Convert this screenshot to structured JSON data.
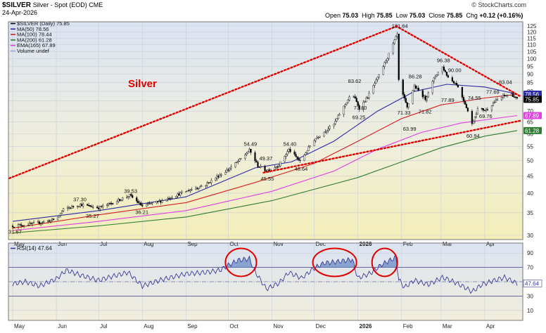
{
  "header": {
    "symbol_title": "$SILVER",
    "symbol_subtitle": "Silver - Spot (EOD)  CME",
    "date": "24-Apr-2026",
    "watermark": "© StockCharts.com",
    "ohlc": {
      "open_label": "Open",
      "open": "75.03",
      "high_label": "High",
      "high": "75.85",
      "low_label": "Low",
      "low": "75.03",
      "close_label": "Close",
      "close": "75.85",
      "chg_label": "Chg",
      "chg": "+0.12 (+0.16%)"
    }
  },
  "legend": [
    {
      "text": "$SILVER (Daily) 75.85",
      "color": "#000000"
    },
    {
      "text": "MA(50) 78.56",
      "color": "#2a2aa8"
    },
    {
      "text": "MA(100) 78.44",
      "color": "#d42020"
    },
    {
      "text": "MA(200) 61.28",
      "color": "#2e7d32"
    },
    {
      "text": "EMA(165) 67.89",
      "color": "#e040e0"
    },
    {
      "text": "Volume undef",
      "color": "#9aa8d8"
    }
  ],
  "chart_data": [
    {
      "type": "candlestick",
      "title": "Silver",
      "title_color": "#e00000",
      "y_scale": "log",
      "ylim": [
        30,
        125
      ],
      "y_ticks": [
        30,
        35,
        40,
        45,
        50,
        55,
        60,
        65,
        70,
        75,
        80,
        85,
        90,
        95,
        100,
        105,
        110,
        115,
        120,
        125
      ],
      "x_tick_labels": [
        "May",
        "Jun",
        "Jul",
        "Aug",
        "Sep",
        "Oct",
        "Nov",
        "Dec",
        "2026",
        "Feb",
        "Mar",
        "Apr"
      ],
      "close_series": [
        [
          "2025-05-01",
          32.0
        ],
        [
          "2025-05-15",
          32.4
        ],
        [
          "2025-06-01",
          33.5
        ],
        [
          "2025-06-06",
          35.8
        ],
        [
          "2025-06-18",
          37.0
        ],
        [
          "2025-07-01",
          36.2
        ],
        [
          "2025-07-12",
          37.6
        ],
        [
          "2025-07-23",
          39.4
        ],
        [
          "2025-08-01",
          36.6
        ],
        [
          "2025-08-15",
          38.0
        ],
        [
          "2025-09-01",
          40.5
        ],
        [
          "2025-09-15",
          42.4
        ],
        [
          "2025-10-01",
          47.0
        ],
        [
          "2025-10-10",
          50.5
        ],
        [
          "2025-10-16",
          53.6
        ],
        [
          "2025-10-22",
          48.2
        ],
        [
          "2025-10-28",
          46.6
        ],
        [
          "2025-11-06",
          48.4
        ],
        [
          "2025-11-13",
          53.8
        ],
        [
          "2025-11-21",
          49.6
        ],
        [
          "2025-12-01",
          57.6
        ],
        [
          "2025-12-15",
          64.0
        ],
        [
          "2025-12-28",
          79.0
        ],
        [
          "2026-01-02",
          71.4
        ],
        [
          "2026-01-08",
          77.0
        ],
        [
          "2026-01-16",
          89.0
        ],
        [
          "2026-01-23",
          103.0
        ],
        [
          "2026-01-29",
          118.0
        ],
        [
          "2026-01-30",
          86.0
        ],
        [
          "2026-02-02",
          78.0
        ],
        [
          "2026-02-05",
          71.5
        ],
        [
          "2026-02-10",
          83.0
        ],
        [
          "2026-02-18",
          76.0
        ],
        [
          "2026-02-25",
          89.0
        ],
        [
          "2026-03-02",
          94.5
        ],
        [
          "2026-03-06",
          88.0
        ],
        [
          "2026-03-12",
          84.0
        ],
        [
          "2026-03-19",
          72.0
        ],
        [
          "2026-03-23",
          64.0
        ],
        [
          "2026-03-27",
          71.0
        ],
        [
          "2026-04-02",
          70.5
        ],
        [
          "2026-04-08",
          74.5
        ],
        [
          "2026-04-14",
          77.5
        ],
        [
          "2026-04-20",
          78.5
        ],
        [
          "2026-04-24",
          75.85
        ]
      ],
      "annotations": [
        {
          "date": "2025-05-02",
          "label": "31.67",
          "value": 31.67
        },
        {
          "date": "2025-06-17",
          "label": "37.30",
          "value": 37.3
        },
        {
          "date": "2025-06-26",
          "label": "35.27",
          "value": 35.27
        },
        {
          "date": "2025-07-23",
          "label": "39.53",
          "value": 39.53
        },
        {
          "date": "2025-07-31",
          "label": "36.21",
          "value": 36.21
        },
        {
          "date": "2025-10-16",
          "label": "54.49",
          "value": 54.49
        },
        {
          "date": "2025-10-27",
          "label": "49.37",
          "value": 49.37
        },
        {
          "date": "2025-10-28",
          "label": "45.55",
          "value": 45.55
        },
        {
          "date": "2025-11-13",
          "label": "54.40",
          "value": 54.4
        },
        {
          "date": "2025-11-21",
          "label": "48.64",
          "value": 48.64
        },
        {
          "date": "2025-12-29",
          "label": "83.62",
          "value": 83.62
        },
        {
          "date": "2026-01-02",
          "label": "73.80",
          "value": 73.8
        },
        {
          "date": "2026-01-01",
          "label": "69.25",
          "value": 69.25
        },
        {
          "date": "2026-01-29",
          "label": "121.64",
          "value": 121.64
        },
        {
          "date": "2026-02-02",
          "label": "71.33",
          "value": 71.33
        },
        {
          "date": "2026-02-06",
          "label": "63.99",
          "value": 63.99
        },
        {
          "date": "2026-02-10",
          "label": "86.28",
          "value": 86.28
        },
        {
          "date": "2026-02-17",
          "label": "71.82",
          "value": 71.82
        },
        {
          "date": "2026-03-02",
          "label": "96.38",
          "value": 96.38
        },
        {
          "date": "2026-03-10",
          "label": "90.00",
          "value": 90.0
        },
        {
          "date": "2026-03-05",
          "label": "77.89",
          "value": 77.89
        },
        {
          "date": "2026-03-24",
          "label": "74.55",
          "value": 74.55
        },
        {
          "date": "2026-03-23",
          "label": "60.94",
          "value": 60.94
        },
        {
          "date": "2026-04-06",
          "label": "77.69",
          "value": 77.69
        },
        {
          "date": "2026-04-01",
          "label": "69.76",
          "value": 69.76
        },
        {
          "date": "2026-04-15",
          "label": "83.04",
          "value": 83.04
        }
      ],
      "moving_averages": [
        {
          "name": "MA(50)",
          "color": "#2a2aa8",
          "points": [
            [
              "2025-05-01",
              33.0
            ],
            [
              "2025-07-01",
              35.5
            ],
            [
              "2025-09-01",
              39.0
            ],
            [
              "2025-10-20",
              47.5
            ],
            [
              "2025-11-15",
              49.5
            ],
            [
              "2025-12-15",
              57.0
            ],
            [
              "2026-01-15",
              70.0
            ],
            [
              "2026-02-10",
              80.0
            ],
            [
              "2026-03-05",
              84.0
            ],
            [
              "2026-04-01",
              82.5
            ],
            [
              "2026-04-24",
              78.56
            ]
          ]
        },
        {
          "name": "MA(100)",
          "color": "#d42020",
          "points": [
            [
              "2025-05-01",
              31.5
            ],
            [
              "2025-07-01",
              34.5
            ],
            [
              "2025-09-01",
              37.5
            ],
            [
              "2025-10-20",
              43.0
            ],
            [
              "2025-12-01",
              49.0
            ],
            [
              "2026-01-01",
              57.0
            ],
            [
              "2026-02-01",
              66.5
            ],
            [
              "2026-03-01",
              73.0
            ],
            [
              "2026-04-01",
              76.5
            ],
            [
              "2026-04-24",
              78.44
            ]
          ]
        },
        {
          "name": "MA(200)",
          "color": "#2e7d32",
          "points": [
            [
              "2025-05-01",
              30.5
            ],
            [
              "2025-07-01",
              32.0
            ],
            [
              "2025-09-01",
              34.0
            ],
            [
              "2025-11-01",
              38.0
            ],
            [
              "2026-01-01",
              44.5
            ],
            [
              "2026-02-01",
              49.5
            ],
            [
              "2026-03-01",
              54.5
            ],
            [
              "2026-04-01",
              59.0
            ],
            [
              "2026-04-24",
              61.28
            ]
          ]
        },
        {
          "name": "EMA(165)",
          "color": "#e040e0",
          "points": [
            [
              "2025-05-01",
              31.0
            ],
            [
              "2025-07-01",
              33.0
            ],
            [
              "2025-09-01",
              35.5
            ],
            [
              "2025-11-01",
              40.5
            ],
            [
              "2025-12-15",
              46.5
            ],
            [
              "2026-01-15",
              54.0
            ],
            [
              "2026-02-15",
              60.5
            ],
            [
              "2026-03-15",
              64.5
            ],
            [
              "2026-04-24",
              67.89
            ]
          ]
        }
      ],
      "trendlines": [
        {
          "color": "#e00000",
          "style": "dotted",
          "from": [
            "2025-04-24",
            43.5
          ],
          "to": [
            "2026-01-29",
            125.0
          ]
        },
        {
          "color": "#e00000",
          "style": "dotted",
          "from": [
            "2026-01-28",
            125.0
          ],
          "to": [
            "2026-04-26",
            77.5
          ]
        },
        {
          "color": "#e00000",
          "style": "dotted",
          "from": [
            "2025-10-26",
            46.0
          ],
          "to": [
            "2026-04-26",
            65.5
          ]
        }
      ],
      "last_value_tags": [
        {
          "label": "78.56",
          "value": 78.56,
          "color": "#2a2aa8"
        },
        {
          "label": "75.85",
          "value": 75.85,
          "color": "#000000"
        },
        {
          "label": "67.89",
          "value": 67.89,
          "color": "#e040e0"
        },
        {
          "label": "61.28",
          "value": 61.28,
          "color": "#2e7d32"
        }
      ]
    },
    {
      "type": "line",
      "title": "RSI(14) 47.64",
      "ylim": [
        0,
        100
      ],
      "y_ticks": [
        10,
        30,
        50,
        70,
        90
      ],
      "overbought": 70,
      "oversold": 30,
      "x_tick_labels": [
        "May",
        "Jun",
        "Jul",
        "Aug",
        "Sep",
        "Oct",
        "Nov",
        "Dec",
        "2026",
        "Feb",
        "Mar",
        "Apr"
      ],
      "series": [
        [
          "2025-05-01",
          47
        ],
        [
          "2025-05-10",
          50
        ],
        [
          "2025-05-20",
          44
        ],
        [
          "2025-06-01",
          54
        ],
        [
          "2025-06-08",
          66
        ],
        [
          "2025-06-20",
          58
        ],
        [
          "2025-07-01",
          52
        ],
        [
          "2025-07-10",
          57
        ],
        [
          "2025-07-22",
          63
        ],
        [
          "2025-08-01",
          44
        ],
        [
          "2025-08-15",
          53
        ],
        [
          "2025-09-01",
          61
        ],
        [
          "2025-09-15",
          63
        ],
        [
          "2025-09-25",
          66
        ],
        [
          "2025-10-01",
          73
        ],
        [
          "2025-10-08",
          80
        ],
        [
          "2025-10-16",
          82
        ],
        [
          "2025-10-20",
          64
        ],
        [
          "2025-10-28",
          40
        ],
        [
          "2025-11-06",
          48
        ],
        [
          "2025-11-13",
          63
        ],
        [
          "2025-11-22",
          55
        ],
        [
          "2025-12-01",
          69
        ],
        [
          "2025-12-08",
          76
        ],
        [
          "2025-12-18",
          78
        ],
        [
          "2025-12-28",
          81
        ],
        [
          "2026-01-01",
          55
        ],
        [
          "2026-01-10",
          62
        ],
        [
          "2026-01-18",
          74
        ],
        [
          "2026-01-23",
          79
        ],
        [
          "2026-01-28",
          84
        ],
        [
          "2026-01-30",
          53
        ],
        [
          "2026-02-03",
          42
        ],
        [
          "2026-02-10",
          52
        ],
        [
          "2026-02-20",
          46
        ],
        [
          "2026-03-02",
          56
        ],
        [
          "2026-03-10",
          50
        ],
        [
          "2026-03-18",
          42
        ],
        [
          "2026-03-23",
          36
        ],
        [
          "2026-03-30",
          46
        ],
        [
          "2026-04-08",
          52
        ],
        [
          "2026-04-15",
          56
        ],
        [
          "2026-04-24",
          47.64
        ]
      ],
      "highlight_ellipses": [
        {
          "from": "2025-09-29",
          "to": "2025-10-21",
          "color": "#e00000"
        },
        {
          "from": "2025-11-30",
          "to": "2025-12-31",
          "color": "#e00000"
        },
        {
          "from": "2026-01-11",
          "to": "2026-01-29",
          "color": "#e00000"
        }
      ],
      "last_value_tag": {
        "label": "47.64",
        "value": 47.64
      }
    }
  ]
}
